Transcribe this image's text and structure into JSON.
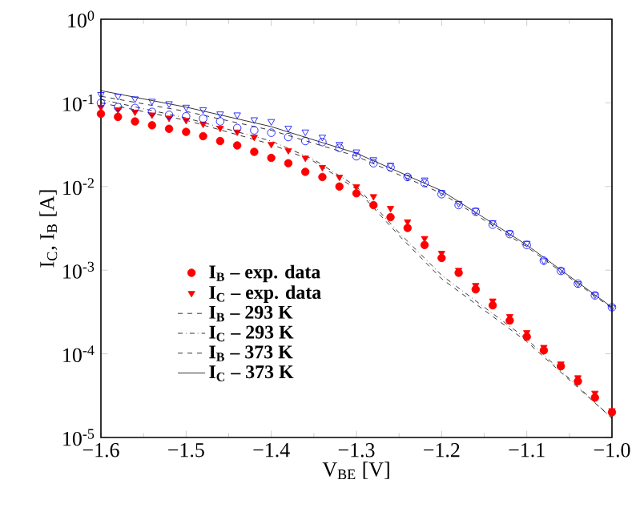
{
  "chart_data": {
    "type": "scatter",
    "xlabel": "V$_{BE}$ [V]",
    "ylabel": "I$_{C}$, I$_{B}$ [A]",
    "log": "y",
    "legend": "left",
    "xlim": [
      -1.6,
      -1.0
    ],
    "ylim": [
      1e-05,
      1
    ],
    "xticks": [
      {
        "value": -1.6,
        "label": "−1.6"
      },
      {
        "value": -1.5,
        "label": "−1.5"
      },
      {
        "value": -1.4,
        "label": "−1.4"
      },
      {
        "value": -1.3,
        "label": "−1.3"
      },
      {
        "value": -1.2,
        "label": "−1.2"
      },
      {
        "value": -1.1,
        "label": "−1.1"
      },
      {
        "value": -1.0,
        "label": "−1.0"
      }
    ],
    "yticks": [
      {
        "value": 1e-05,
        "label": "10$^{-5}$"
      },
      {
        "value": 0.0001,
        "label": "10$^{-4}$"
      },
      {
        "value": 0.001,
        "label": "10$^{-3}$"
      },
      {
        "value": 0.01,
        "label": "10$^{-2}$"
      },
      {
        "value": 0.1,
        "label": "10$^{-1}$"
      },
      {
        "value": 1,
        "label": "10$^{0}$"
      }
    ],
    "x": [
      -1.6,
      -1.58,
      -1.56,
      -1.54,
      -1.52,
      -1.5,
      -1.48,
      -1.46,
      -1.44,
      -1.42,
      -1.4,
      -1.38,
      -1.36,
      -1.34,
      -1.32,
      -1.3,
      -1.28,
      -1.26,
      -1.24,
      -1.22,
      -1.2,
      -1.18,
      -1.16,
      -1.14,
      -1.12,
      -1.1,
      -1.08,
      -1.06,
      -1.04,
      -1.02,
      -1.0
    ],
    "series": [
      {
        "name": "I$_{B}$ – exp. data",
        "color": "#ff0000",
        "marker": "circle",
        "values": [
          0.074,
          0.068,
          0.06,
          0.054,
          0.049,
          0.045,
          0.04,
          0.035,
          0.031,
          0.026,
          0.022,
          0.019,
          0.015,
          0.013,
          0.01,
          0.0083,
          0.006,
          0.0043,
          0.0032,
          0.002,
          0.0014,
          0.00093,
          0.00059,
          0.00038,
          0.00025,
          0.00016,
          0.00011,
          7.1e-05,
          4.7e-05,
          3e-05,
          2e-05
        ]
      },
      {
        "name": "I$_{C}$ – exp. data",
        "color": "#ff0000",
        "marker": "triangle",
        "values": [
          0.089,
          0.083,
          0.078,
          0.072,
          0.066,
          0.062,
          0.056,
          0.05,
          0.045,
          0.039,
          0.032,
          0.027,
          0.022,
          0.017,
          0.013,
          0.01,
          0.0076,
          0.0055,
          0.0038,
          0.0024,
          0.0016,
          0.001,
          0.00066,
          0.00043,
          0.00028,
          0.00018,
          0.00012,
          7.6e-05,
          5.2e-05,
          3.4e-05,
          2.1e-05
        ]
      },
      {
        "color": "#0000ff",
        "marker": "circle",
        "values": [
          0.1,
          0.089,
          0.087,
          0.078,
          0.072,
          0.069,
          0.065,
          0.06,
          0.05,
          0.047,
          0.044,
          0.039,
          0.035,
          0.034,
          0.029,
          0.023,
          0.019,
          0.017,
          0.013,
          0.011,
          0.0081,
          0.006,
          0.005,
          0.0035,
          0.0027,
          0.002,
          0.0013,
          0.00098,
          0.00069,
          0.0005,
          0.00036
        ]
      },
      {
        "color": "#0000ff",
        "marker": "triangle",
        "values": [
          0.126,
          0.12,
          0.112,
          0.105,
          0.098,
          0.089,
          0.083,
          0.074,
          0.072,
          0.063,
          0.06,
          0.05,
          0.045,
          0.039,
          0.032,
          0.026,
          0.021,
          0.018,
          0.013,
          0.012,
          0.0085,
          0.0063,
          0.0052,
          0.0037,
          0.0028,
          0.0021,
          0.0013,
          0.001,
          0.00069,
          0.00051,
          0.00036
        ]
      },
      {
        "name": "I$_{B}$ – 293 K",
        "type": "line",
        "color": "#000000",
        "line_style": "dashed",
        "x": [
          -1.6,
          -1.5,
          -1.4,
          -1.35,
          -1.3,
          -1.25,
          -1.2,
          -1.1,
          -1.0
        ],
        "values": [
          0.1,
          0.062,
          0.032,
          0.02,
          0.0093,
          0.0026,
          0.00079,
          0.00014,
          1.7e-05
        ]
      },
      {
        "name": "I$_{C}$ – 293 K",
        "type": "line",
        "color": "#000000",
        "line_style": "dashdot",
        "x": [
          -1.6,
          -1.5,
          -1.4,
          -1.35,
          -1.3,
          -1.25,
          -1.2,
          -1.1,
          -1.0
        ],
        "values": [
          0.11,
          0.066,
          0.035,
          0.021,
          0.01,
          0.0028,
          0.00087,
          0.00015,
          1.7e-05
        ]
      },
      {
        "name": "I$_{B}$ – 373 K",
        "type": "line",
        "color": "#000000",
        "line_style": "dashed",
        "x": [
          -1.6,
          -1.5,
          -1.4,
          -1.3,
          -1.2,
          -1.1,
          -1.0
        ],
        "values": [
          0.12,
          0.079,
          0.047,
          0.023,
          0.0083,
          0.0019,
          0.00035
        ]
      },
      {
        "name": "I$_{C}$ – 373 K",
        "type": "line",
        "color": "#000000",
        "line_style": "solid",
        "x": [
          -1.6,
          -1.5,
          -1.4,
          -1.3,
          -1.2,
          -1.1,
          -1.0
        ],
        "values": [
          0.14,
          0.089,
          0.052,
          0.025,
          0.0089,
          0.002,
          0.00036
        ]
      }
    ]
  }
}
